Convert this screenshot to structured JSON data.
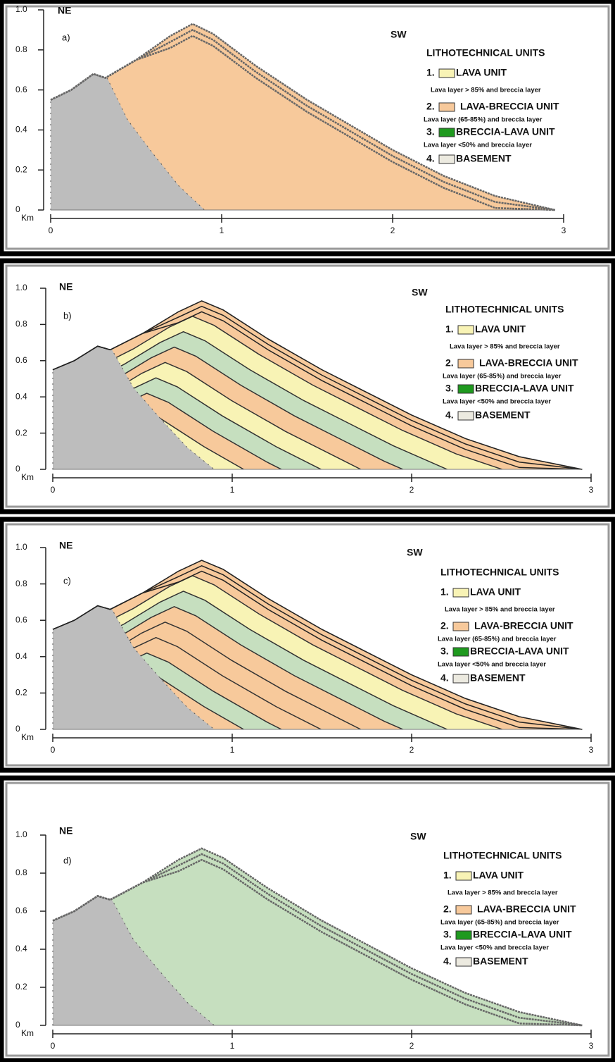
{
  "panels": [
    {
      "label": "a)",
      "ne": "NE",
      "sw": "SW",
      "y_labels": [
        "1.0",
        "0.8",
        "0.6",
        "0.4",
        "0.2",
        "0"
      ],
      "x_unit": "Km",
      "x_labels": [
        "0",
        "1",
        "2",
        "3"
      ],
      "legend": {
        "title": "LITHOTECHNICAL UNITS",
        "items": [
          {
            "number": "1.",
            "name": "LAVA UNIT",
            "note": "Lava layer > 85% and breccia layer"
          },
          {
            "number": "2.",
            "name": "LAVA-BRECCIA UNIT",
            "note": "Lava layer (65-85%) and breccia layer"
          },
          {
            "number": "3.",
            "name": "BRECCIA-LAVA UNIT",
            "note": "Lava layer <50% and breccia layer"
          },
          {
            "number": "4.",
            "name": "BASEMENT"
          }
        ]
      }
    },
    {
      "label": "b)",
      "ne": "NE",
      "sw": "SW",
      "y_labels": [
        "1.0",
        "0.8",
        "0.6",
        "0.4",
        "0.2",
        "0"
      ],
      "x_unit": "Km",
      "x_labels": [
        "0",
        "1",
        "2",
        "3"
      ],
      "legend": {
        "title": "LITHOTECHNICAL UNITS",
        "items": [
          {
            "number": "1.",
            "name": "LAVA UNIT",
            "note": "Lava layer > 85% and breccia layer"
          },
          {
            "number": "2.",
            "name": "LAVA-BRECCIA UNIT",
            "note": "Lava layer (65-85%) and breccia layer"
          },
          {
            "number": "3.",
            "name": "BRECCIA-LAVA UNIT",
            "note": "Lava layer <50% and breccia layer"
          },
          {
            "number": "4.",
            "name": "BASEMENT"
          }
        ]
      }
    },
    {
      "label": "c)",
      "ne": "NE",
      "sw": "SW",
      "y_labels": [
        "1.0",
        "0.8",
        "0.6",
        "0.4",
        "0.2",
        "0"
      ],
      "x_unit": "Km",
      "x_labels": [
        "0",
        "1",
        "2",
        "3"
      ],
      "legend": {
        "title": "LITHOTECHNICAL UNITS",
        "items": [
          {
            "number": "1.",
            "name": "LAVA UNIT",
            "note": "Lava layer > 85% and breccia layer"
          },
          {
            "number": "2.",
            "name": "LAVA-BRECCIA UNIT",
            "note": "Lava layer (65-85%) and breccia layer"
          },
          {
            "number": "3.",
            "name": "BRECCIA-LAVA UNIT",
            "note": "Lava layer <50% and breccia layer"
          },
          {
            "number": "4.",
            "name": "BASEMENT"
          }
        ]
      }
    },
    {
      "label": "d)",
      "ne": "NE",
      "sw": "SW",
      "y_labels": [
        "1.0",
        "0.8",
        "0.6",
        "0.4",
        "0.2",
        "0"
      ],
      "x_unit": "Km",
      "x_labels": [
        "0",
        "1",
        "2",
        "3"
      ],
      "legend": {
        "title": "LITHOTECHNICAL UNITS",
        "items": [
          {
            "number": "1.",
            "name": "LAVA UNIT",
            "note": "Lava layer > 85% and breccia layer"
          },
          {
            "number": "2.",
            "name": "LAVA-BRECCIA UNIT",
            "note": "Lava layer (65-85%) and breccia layer"
          },
          {
            "number": "3.",
            "name": "BRECCIA-LAVA UNIT",
            "note": "Lava layer <50% and breccia layer"
          },
          {
            "number": "4.",
            "name": "BASEMENT"
          }
        ]
      }
    }
  ]
}
